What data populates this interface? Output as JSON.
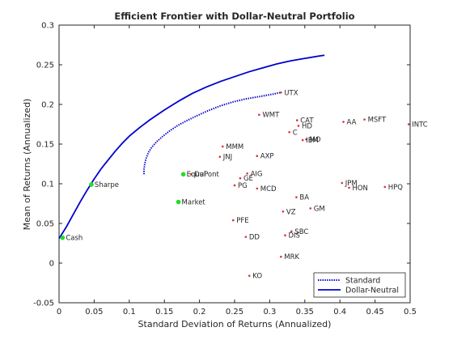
{
  "chart_data": {
    "type": "scatter",
    "title": "Efficient Frontier with Dollar-Neutral Portfolio",
    "xlabel": "Standard Deviation of Returns (Annualized)",
    "ylabel": "Mean of Returns (Annualized)",
    "xlim": [
      0,
      0.5
    ],
    "ylim": [
      -0.05,
      0.3
    ],
    "xticks": [
      0,
      0.05,
      0.1,
      0.15,
      0.2,
      0.25,
      0.3,
      0.35,
      0.4,
      0.45,
      0.5
    ],
    "xtick_labels": [
      "0",
      "0.05",
      "0.1",
      "0.15",
      "0.2",
      "0.25",
      "0.3",
      "0.35",
      "0.4",
      "0.45",
      "0.5"
    ],
    "yticks": [
      -0.05,
      0,
      0.05,
      0.1,
      0.15,
      0.2,
      0.25,
      0.3
    ],
    "ytick_labels": [
      "-0.05",
      "0",
      "0.05",
      "0.1",
      "0.15",
      "0.2",
      "0.25",
      "0.3"
    ],
    "grid": false,
    "legend_position": "bottom-right",
    "colors": {
      "standard": "#0000cc",
      "dollar_neutral": "#0000cc",
      "asset": "#e03030",
      "special": "#22dd22",
      "text": "#262626"
    },
    "series": [
      {
        "name": "Standard",
        "style": "dotted",
        "x": [
          0.121,
          0.121,
          0.122,
          0.124,
          0.127,
          0.132,
          0.139,
          0.148,
          0.158,
          0.17,
          0.183,
          0.197,
          0.212,
          0.229,
          0.247,
          0.266,
          0.286,
          0.305,
          0.315
        ],
        "y": [
          0.112,
          0.118,
          0.125,
          0.132,
          0.139,
          0.146,
          0.153,
          0.16,
          0.167,
          0.174,
          0.18,
          0.186,
          0.192,
          0.198,
          0.203,
          0.207,
          0.21,
          0.213,
          0.215
        ]
      },
      {
        "name": "Dollar-Neutral",
        "style": "solid",
        "x": [
          0.0,
          0.01,
          0.02,
          0.03,
          0.04,
          0.05,
          0.06,
          0.07,
          0.08,
          0.09,
          0.1,
          0.115,
          0.13,
          0.15,
          0.17,
          0.19,
          0.21,
          0.23,
          0.25,
          0.27,
          0.29,
          0.31,
          0.33,
          0.35,
          0.37,
          0.378
        ],
        "y": [
          0.031,
          0.045,
          0.061,
          0.077,
          0.092,
          0.106,
          0.119,
          0.13,
          0.141,
          0.151,
          0.16,
          0.171,
          0.181,
          0.193,
          0.204,
          0.214,
          0.222,
          0.229,
          0.235,
          0.241,
          0.246,
          0.251,
          0.255,
          0.258,
          0.261,
          0.262
        ]
      }
    ],
    "assets": [
      {
        "name": "UTX",
        "x": 0.316,
        "y": 0.215
      },
      {
        "name": "WMT",
        "x": 0.285,
        "y": 0.187
      },
      {
        "name": "CAT",
        "x": 0.339,
        "y": 0.18
      },
      {
        "name": "HD",
        "x": 0.341,
        "y": 0.173
      },
      {
        "name": "C",
        "x": 0.328,
        "y": 0.165
      },
      {
        "name": "MO",
        "x": 0.352,
        "y": 0.156
      },
      {
        "name": "IBM",
        "x": 0.347,
        "y": 0.155
      },
      {
        "name": "AA",
        "x": 0.405,
        "y": 0.178
      },
      {
        "name": "MSFT",
        "x": 0.435,
        "y": 0.181
      },
      {
        "name": "INTC",
        "x": 0.498,
        "y": 0.175
      },
      {
        "name": "MMM",
        "x": 0.233,
        "y": 0.147
      },
      {
        "name": "JNJ",
        "x": 0.229,
        "y": 0.134
      },
      {
        "name": "AXP",
        "x": 0.282,
        "y": 0.135
      },
      {
        "name": "AIG",
        "x": 0.268,
        "y": 0.113
      },
      {
        "name": "GE",
        "x": 0.258,
        "y": 0.107
      },
      {
        "name": "PG",
        "x": 0.25,
        "y": 0.098
      },
      {
        "name": "MCD",
        "x": 0.282,
        "y": 0.094
      },
      {
        "name": "DuPont",
        "x": 0.188,
        "y": 0.112
      },
      {
        "name": "JPM",
        "x": 0.403,
        "y": 0.101
      },
      {
        "name": "HON",
        "x": 0.413,
        "y": 0.095
      },
      {
        "name": "HPQ",
        "x": 0.464,
        "y": 0.096
      },
      {
        "name": "BA",
        "x": 0.338,
        "y": 0.083
      },
      {
        "name": "GM",
        "x": 0.358,
        "y": 0.069
      },
      {
        "name": "VZ",
        "x": 0.319,
        "y": 0.065
      },
      {
        "name": "PFE",
        "x": 0.248,
        "y": 0.054
      },
      {
        "name": "SBC",
        "x": 0.331,
        "y": 0.04
      },
      {
        "name": "DIS",
        "x": 0.322,
        "y": 0.035
      },
      {
        "name": "DD",
        "x": 0.266,
        "y": 0.033
      },
      {
        "name": "MRK",
        "x": 0.316,
        "y": 0.008
      },
      {
        "name": "KO",
        "x": 0.271,
        "y": -0.016
      }
    ],
    "special_points": [
      {
        "name": "Cash",
        "x": 0.005,
        "y": 0.032
      },
      {
        "name": "Sharpe",
        "x": 0.046,
        "y": 0.099
      },
      {
        "name": "Equal",
        "x": 0.177,
        "y": 0.112
      },
      {
        "name": "Market",
        "x": 0.17,
        "y": 0.077
      }
    ]
  }
}
